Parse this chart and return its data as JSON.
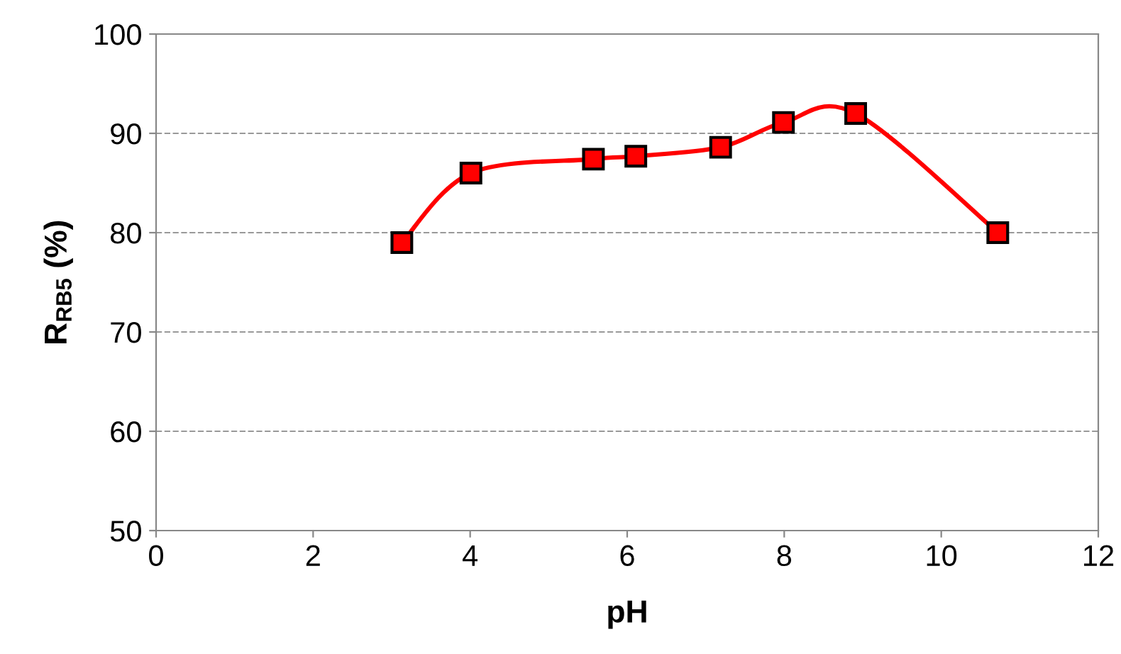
{
  "chart_data": {
    "type": "line",
    "xlabel": "pH",
    "ylabel": "R$_{RB5}$ (%)",
    "x": [
      3.13,
      4.01,
      5.57,
      6.11,
      7.19,
      7.99,
      8.91,
      10.72
    ],
    "series": [
      {
        "color": "#ff0000",
        "values": [
          79.0,
          86.0,
          87.4,
          87.7,
          88.6,
          91.1,
          92.0,
          80.0
        ]
      }
    ],
    "xlim": [
      0,
      12
    ],
    "xticks": [
      0,
      2,
      4,
      6,
      8,
      10,
      12
    ],
    "ylim": [
      50,
      100
    ],
    "yticks": [
      50,
      60,
      70,
      80,
      90,
      100
    ],
    "grid": "y",
    "marker": "square",
    "line_style": "solid",
    "legend": false
  }
}
